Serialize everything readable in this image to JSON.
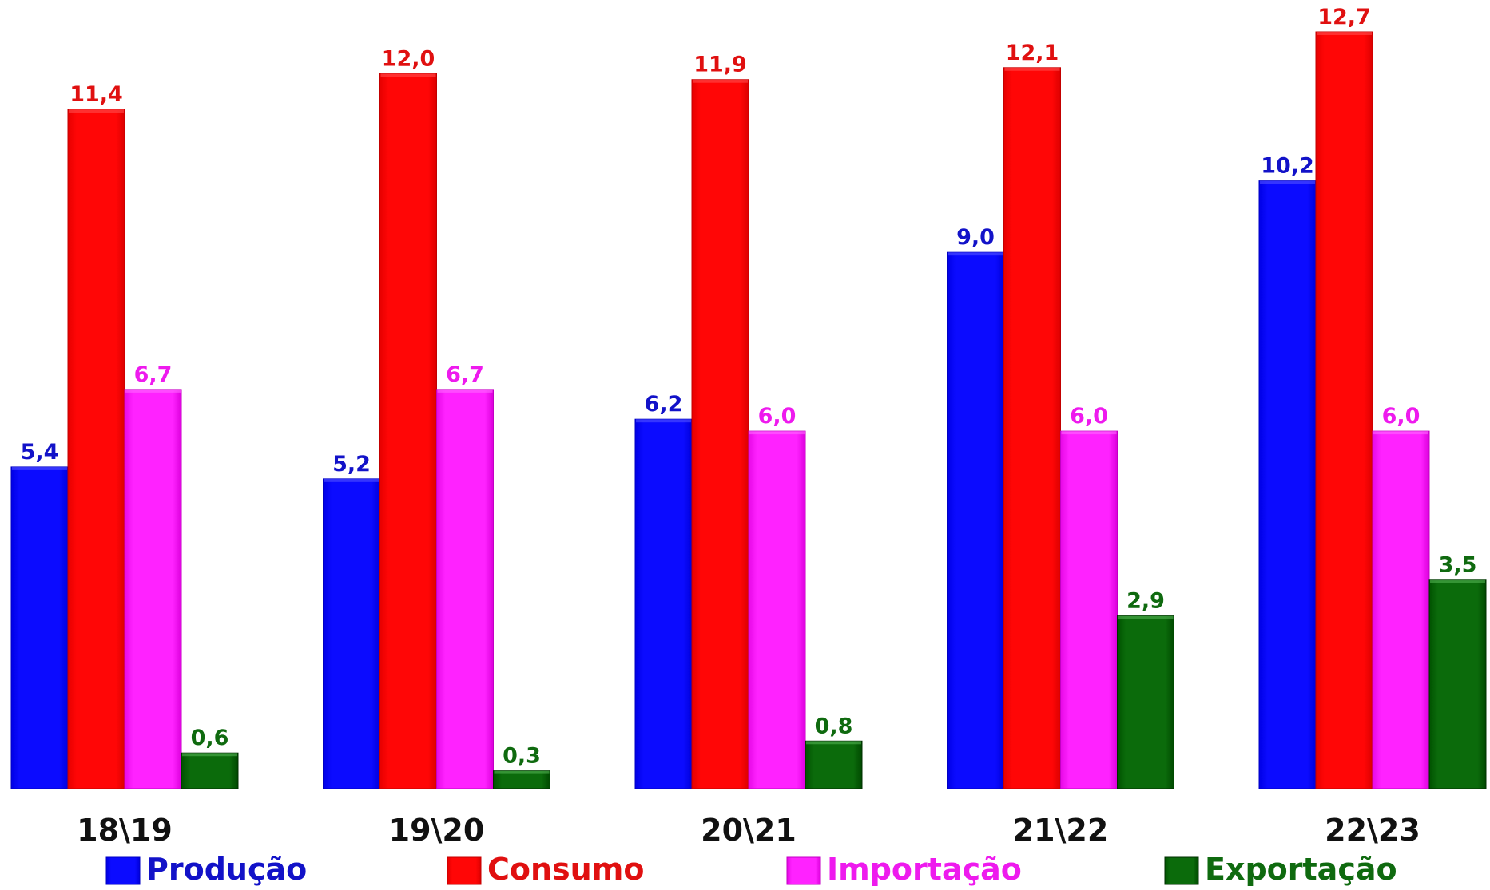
{
  "chart_data": {
    "type": "bar",
    "title": "",
    "xlabel": "",
    "ylabel": "",
    "categories": [
      "18\\19",
      "19\\20",
      "20\\21",
      "21\\22",
      "22\\23"
    ],
    "series": [
      {
        "name": "Produção",
        "color": "#0b0bff",
        "labelColor": "#1212c8",
        "values": [
          5.4,
          5.2,
          6.2,
          9.0,
          10.2
        ]
      },
      {
        "name": "Consumo",
        "color": "#ff0606",
        "labelColor": "#e01010",
        "values": [
          11.4,
          12.0,
          11.9,
          12.1,
          12.7
        ]
      },
      {
        "name": "Importação",
        "color": "#ff22ff",
        "labelColor": "#ee1aee",
        "values": [
          6.7,
          6.7,
          6.0,
          6.0,
          6.0
        ]
      },
      {
        "name": "Exportação",
        "color": "#0b6b0b",
        "labelColor": "#0f6a0f",
        "values": [
          0.6,
          0.3,
          0.8,
          2.9,
          3.5
        ]
      }
    ],
    "data_labels": [
      [
        "5,4",
        "5,2",
        "6,2",
        "9,0",
        "10,2"
      ],
      [
        "11,4",
        "12,0",
        "11,9",
        "12,1",
        "12,7"
      ],
      [
        "6,7",
        "6,7",
        "6,0",
        "6,0",
        "6,0"
      ],
      [
        "0,6",
        "0,3",
        "0,8",
        "2,9",
        "3,5"
      ]
    ],
    "ylim": [
      0,
      12.7
    ],
    "grid": false,
    "y_axis_visible": false,
    "legend_position": "bottom"
  }
}
